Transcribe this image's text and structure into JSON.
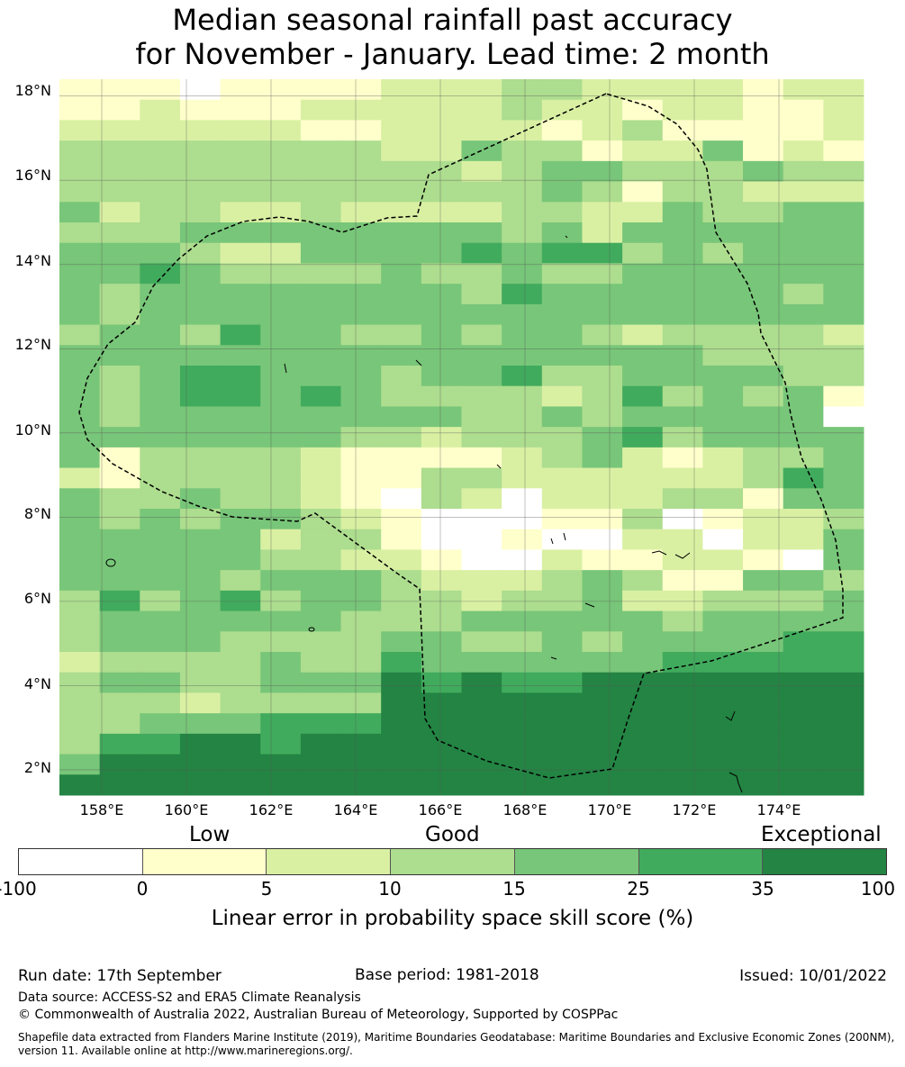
{
  "title": {
    "line1": "Median seasonal rainfall past accuracy",
    "line2": "for November - January. Lead time: 2 month"
  },
  "map": {
    "lon_range": [
      157,
      176
    ],
    "lat_range": [
      1.4,
      18.4
    ],
    "lat_labels": [
      "18°N",
      "16°N",
      "14°N",
      "12°N",
      "10°N",
      "8°N",
      "6°N",
      "4°N",
      "2°N"
    ],
    "lon_labels": [
      "158°E",
      "160°E",
      "162°E",
      "164°E",
      "166°E",
      "168°E",
      "170°E",
      "172°E",
      "174°E"
    ],
    "grid_color": "#555555"
  },
  "legend": {
    "quality_labels": {
      "low": "Low",
      "good": "Good",
      "exceptional": "Exceptional"
    },
    "colors": [
      "#ffffff",
      "#ffffcc",
      "#d9f0a3",
      "#addd8e",
      "#78c679",
      "#41ab5d",
      "#238443"
    ],
    "ticks": [
      "-100",
      "0",
      "5",
      "10",
      "15",
      "25",
      "35",
      "100"
    ],
    "axis_label": "Linear error in probability space skill score (%)"
  },
  "footer": {
    "run_date": "Run date: 17th September",
    "base_period": "Base period: 1981-2018",
    "issued": "Issued: 10/01/2022",
    "data_source": "Data source: ACCESS-S2 and ERA5 Climate Reanalysis",
    "copyright": "© Commonwealth of Australia 2022, Australian Bureau of Meteorology, Supported by COSPPac",
    "shapefile_note": "Shapefile data extracted from Flanders Marine Institute (2019), Maritime Boundaries Geodatabase: Maritime Boundaries and Exclusive Economic Zones (200NM), version 11. Available online at http://www.marineregions.org/."
  }
}
